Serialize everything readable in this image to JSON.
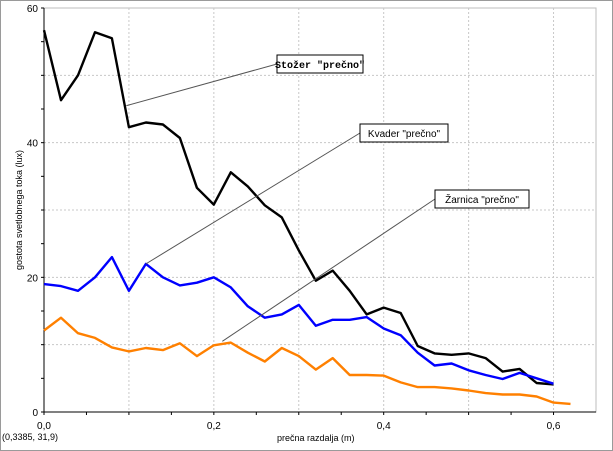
{
  "chart_data": {
    "type": "line",
    "xlabel": "prečna razdalja (m)",
    "ylabel": "gostota svetlobnega toka (lux)",
    "xlim": [
      0,
      0.65
    ],
    "ylim": [
      0,
      60
    ],
    "x_ticks": [
      "0,0",
      "0,2",
      "0,4",
      "0,6"
    ],
    "y_ticks": [
      "0",
      "20",
      "40",
      "60"
    ],
    "grid": true,
    "cursor_readout": "(0,3385, 31,9)",
    "series": [
      {
        "name": "Stožer \"prečno\"",
        "color": "#000000",
        "points": [
          [
            0.0,
            56.7
          ],
          [
            0.02,
            46.3
          ],
          [
            0.04,
            50.0
          ],
          [
            0.06,
            56.4
          ],
          [
            0.08,
            55.5
          ],
          [
            0.1,
            42.3
          ],
          [
            0.12,
            43.0
          ],
          [
            0.14,
            42.7
          ],
          [
            0.16,
            40.7
          ],
          [
            0.18,
            33.3
          ],
          [
            0.2,
            30.8
          ],
          [
            0.22,
            35.6
          ],
          [
            0.24,
            33.5
          ],
          [
            0.26,
            30.7
          ],
          [
            0.28,
            28.9
          ],
          [
            0.3,
            24.0
          ],
          [
            0.32,
            19.5
          ],
          [
            0.34,
            21.0
          ],
          [
            0.36,
            18.0
          ],
          [
            0.38,
            14.5
          ],
          [
            0.4,
            15.5
          ],
          [
            0.42,
            14.7
          ],
          [
            0.44,
            9.8
          ],
          [
            0.46,
            8.7
          ],
          [
            0.48,
            8.5
          ],
          [
            0.5,
            8.7
          ],
          [
            0.52,
            8.0
          ],
          [
            0.54,
            6.0
          ],
          [
            0.56,
            6.4
          ],
          [
            0.58,
            4.3
          ],
          [
            0.6,
            4.1
          ]
        ]
      },
      {
        "name": "Kvader \"prečno\"",
        "color": "#0000ff",
        "points": [
          [
            0.0,
            19.0
          ],
          [
            0.02,
            18.7
          ],
          [
            0.04,
            18.0
          ],
          [
            0.06,
            20.0
          ],
          [
            0.08,
            23.0
          ],
          [
            0.1,
            18.0
          ],
          [
            0.12,
            22.0
          ],
          [
            0.14,
            20.0
          ],
          [
            0.16,
            18.8
          ],
          [
            0.18,
            19.2
          ],
          [
            0.2,
            20.0
          ],
          [
            0.22,
            18.5
          ],
          [
            0.24,
            15.7
          ],
          [
            0.26,
            14.0
          ],
          [
            0.28,
            14.5
          ],
          [
            0.3,
            15.9
          ],
          [
            0.32,
            12.8
          ],
          [
            0.34,
            13.7
          ],
          [
            0.36,
            13.7
          ],
          [
            0.38,
            14.1
          ],
          [
            0.4,
            12.4
          ],
          [
            0.42,
            11.4
          ],
          [
            0.44,
            8.8
          ],
          [
            0.46,
            6.9
          ],
          [
            0.48,
            7.2
          ],
          [
            0.5,
            6.2
          ],
          [
            0.52,
            5.5
          ],
          [
            0.54,
            4.9
          ],
          [
            0.56,
            5.8
          ],
          [
            0.58,
            5.0
          ],
          [
            0.6,
            4.2
          ]
        ]
      },
      {
        "name": "Žarnica \"prečno\"",
        "color": "#ff8000",
        "points": [
          [
            0.0,
            12.1
          ],
          [
            0.02,
            14.0
          ],
          [
            0.04,
            11.7
          ],
          [
            0.06,
            11.0
          ],
          [
            0.08,
            9.6
          ],
          [
            0.1,
            9.0
          ],
          [
            0.12,
            9.5
          ],
          [
            0.14,
            9.2
          ],
          [
            0.16,
            10.2
          ],
          [
            0.18,
            8.3
          ],
          [
            0.2,
            9.9
          ],
          [
            0.22,
            10.3
          ],
          [
            0.24,
            8.8
          ],
          [
            0.26,
            7.5
          ],
          [
            0.28,
            9.5
          ],
          [
            0.3,
            8.3
          ],
          [
            0.32,
            6.3
          ],
          [
            0.34,
            8.0
          ],
          [
            0.36,
            5.5
          ],
          [
            0.38,
            5.5
          ],
          [
            0.4,
            5.4
          ],
          [
            0.42,
            4.4
          ],
          [
            0.44,
            3.7
          ],
          [
            0.46,
            3.7
          ],
          [
            0.48,
            3.5
          ],
          [
            0.5,
            3.2
          ],
          [
            0.52,
            2.8
          ],
          [
            0.54,
            2.6
          ],
          [
            0.56,
            2.6
          ],
          [
            0.58,
            2.3
          ],
          [
            0.6,
            1.4
          ],
          [
            0.62,
            1.2
          ]
        ]
      }
    ],
    "annotations": [
      {
        "text": "Stožer \"prečno\"",
        "series": 0,
        "anchor": [
          0.097,
          45.5
        ]
      },
      {
        "text": "Kvader \"prečno\"",
        "series": 1,
        "anchor": [
          0.12,
          22.0
        ]
      },
      {
        "text": "Žarnica \"prečno\"",
        "series": 2,
        "anchor": [
          0.21,
          10.5
        ]
      }
    ]
  }
}
